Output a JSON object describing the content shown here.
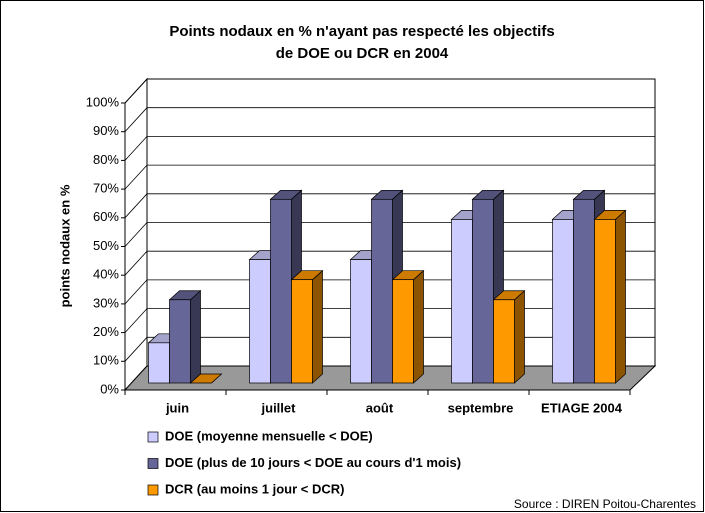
{
  "chart_data": {
    "type": "bar3d",
    "title": [
      "Points nodaux en % n'ayant pas respecté les objectifs",
      "de DOE ou DCR en 2004"
    ],
    "y_label": "points nodaux en %",
    "categories": [
      "juin",
      "juillet",
      "août",
      "septembre",
      "ETIAGE 2004"
    ],
    "series": [
      {
        "name": "DOE (moyenne mensuelle < DOE)",
        "color": "#ccccff",
        "values": [
          14,
          43,
          43,
          57,
          57
        ]
      },
      {
        "name": "DOE (plus de 10 jours < DOE au cours d'1 mois)",
        "color": "#666699",
        "values": [
          29,
          64,
          64,
          64,
          64
        ]
      },
      {
        "name": "DCR (au moins 1 jour < DCR)",
        "color": "#ff9900",
        "values": [
          0,
          36,
          36,
          29,
          57
        ]
      }
    ],
    "ylim": [
      0,
      100
    ],
    "yticks": [
      {
        "value": 0,
        "label": "0%"
      },
      {
        "value": 10,
        "label": "10%"
      },
      {
        "value": 20,
        "label": "20%"
      },
      {
        "value": 30,
        "label": "30%"
      },
      {
        "value": 40,
        "label": "40%"
      },
      {
        "value": 50,
        "label": "50%"
      },
      {
        "value": 60,
        "label": "60%"
      },
      {
        "value": 70,
        "label": "70%"
      },
      {
        "value": 80,
        "label": "80%"
      },
      {
        "value": 90,
        "label": "90%"
      },
      {
        "value": 100,
        "label": "100%"
      }
    ],
    "grid": true,
    "source": "Source : DIREN Poitou-Charentes"
  }
}
